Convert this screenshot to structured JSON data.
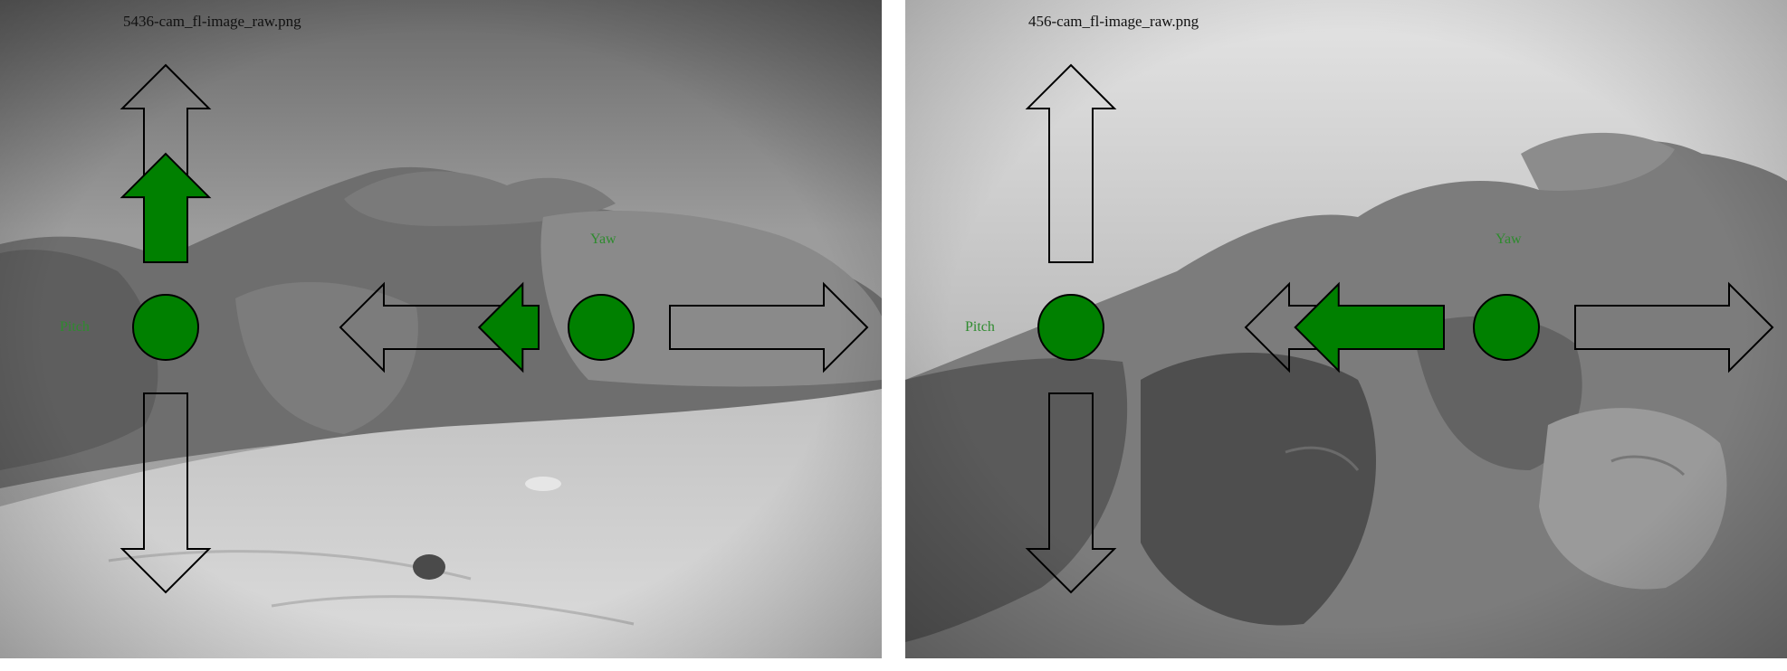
{
  "panels": [
    {
      "filename": "5436-cam_fl-image_raw.png",
      "pitch_label": "Pitch",
      "yaw_label": "Yaw",
      "pitch_level": 0.55,
      "yaw_level": 0.3
    },
    {
      "filename": "456-cam_fl-image_raw.png",
      "pitch_label": "Pitch",
      "yaw_label": "Yaw",
      "pitch_level": 0,
      "yaw_level": 0.75
    }
  ],
  "colors": {
    "indicator": "#008000",
    "outline": "#000000"
  }
}
